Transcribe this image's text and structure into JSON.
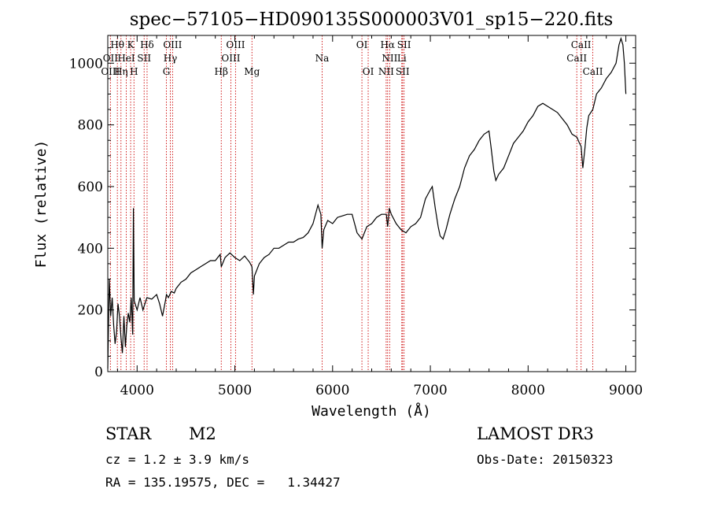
{
  "chart_data": {
    "type": "line",
    "title": "spec−57105−HD090135S000003V01_sp15−220.fits",
    "xlabel": "Wavelength (Å)",
    "ylabel": "Flux (relative)",
    "xlim": [
      3700,
      9100
    ],
    "ylim": [
      0,
      1090
    ],
    "xticks": [
      4000,
      5000,
      6000,
      7000,
      8000,
      9000
    ],
    "yticks": [
      0,
      200,
      400,
      600,
      800,
      1000
    ],
    "grid": false,
    "legend": "none",
    "line_color": "#000000",
    "marker_color": "#cc0000",
    "series": [
      {
        "x": [
          3700,
          3715,
          3730,
          3745,
          3760,
          3775,
          3790,
          3805,
          3820,
          3835,
          3850,
          3865,
          3880,
          3895,
          3910,
          3925,
          3940,
          3955,
          3962,
          3970,
          3985,
          4000,
          4030,
          4060,
          4100,
          4150,
          4200,
          4230,
          4260,
          4290,
          4300,
          4320,
          4350,
          4380,
          4400,
          4450,
          4500,
          4550,
          4600,
          4650,
          4700,
          4750,
          4800,
          4850,
          4861,
          4900,
          4950,
          5000,
          5050,
          5100,
          5150,
          5175,
          5190,
          5200,
          5250,
          5300,
          5350,
          5400,
          5450,
          5500,
          5550,
          5600,
          5650,
          5700,
          5750,
          5800,
          5850,
          5880,
          5893,
          5910,
          5950,
          6000,
          6050,
          6100,
          6150,
          6200,
          6250,
          6300,
          6350,
          6400,
          6450,
          6500,
          6550,
          6563,
          6580,
          6600,
          6650,
          6700,
          6750,
          6800,
          6850,
          6900,
          6950,
          7000,
          7020,
          7050,
          7080,
          7100,
          7130,
          7160,
          7200,
          7250,
          7300,
          7350,
          7400,
          7450,
          7500,
          7550,
          7600,
          7620,
          7650,
          7670,
          7700,
          7750,
          7800,
          7850,
          7900,
          7950,
          8000,
          8050,
          8100,
          8150,
          8200,
          8250,
          8300,
          8350,
          8400,
          8450,
          8500,
          8520,
          8542,
          8560,
          8580,
          8600,
          8620,
          8662,
          8700,
          8750,
          8800,
          8850,
          8900,
          8930,
          8950,
          8970,
          8985,
          9000
        ],
        "y": [
          10,
          300,
          180,
          240,
          150,
          90,
          130,
          220,
          180,
          110,
          60,
          180,
          80,
          150,
          190,
          160,
          240,
          120,
          530,
          230,
          215,
          200,
          240,
          200,
          240,
          235,
          250,
          220,
          180,
          230,
          250,
          240,
          260,
          255,
          270,
          290,
          300,
          320,
          330,
          340,
          350,
          360,
          360,
          380,
          340,
          370,
          385,
          370,
          360,
          375,
          355,
          340,
          250,
          310,
          350,
          370,
          380,
          400,
          400,
          410,
          420,
          420,
          430,
          435,
          450,
          480,
          540,
          510,
          400,
          460,
          490,
          480,
          500,
          505,
          510,
          510,
          450,
          430,
          470,
          480,
          500,
          510,
          510,
          470,
          530,
          510,
          480,
          460,
          450,
          470,
          480,
          500,
          560,
          590,
          600,
          530,
          470,
          440,
          430,
          460,
          510,
          560,
          600,
          660,
          700,
          720,
          750,
          770,
          780,
          730,
          650,
          620,
          640,
          660,
          700,
          740,
          760,
          780,
          810,
          830,
          860,
          870,
          860,
          850,
          840,
          820,
          800,
          770,
          760,
          745,
          730,
          660,
          720,
          790,
          830,
          850,
          900,
          920,
          950,
          970,
          1000,
          1060,
          1080,
          1060,
          1000,
          900
        ]
      }
    ],
    "spectral_lines": [
      {
        "label": "Hθ",
        "x": 3798,
        "row": 0
      },
      {
        "label": "K",
        "x": 3934,
        "row": 0
      },
      {
        "label": "Hδ",
        "x": 4102,
        "row": 0
      },
      {
        "label": "OIII",
        "x": 4363,
        "row": 0
      },
      {
        "label": "OIII",
        "x": 5007,
        "row": 0
      },
      {
        "label": "OI",
        "x": 6300,
        "row": 0
      },
      {
        "label": "Hα",
        "x": 6563,
        "row": 0
      },
      {
        "label": "SII",
        "x": 6731,
        "row": 0
      },
      {
        "label": "CaII",
        "x": 8542,
        "row": 0
      },
      {
        "label": "OII",
        "x": 3727,
        "row": 1
      },
      {
        "label": "HeI",
        "x": 3889,
        "row": 1
      },
      {
        "label": "SII",
        "x": 4072,
        "row": 1
      },
      {
        "label": "Hγ",
        "x": 4340,
        "row": 1
      },
      {
        "label": "OIII",
        "x": 4959,
        "row": 1
      },
      {
        "label": "Na",
        "x": 5893,
        "row": 1
      },
      {
        "label": "NII",
        "x": 6584,
        "row": 1
      },
      {
        "label": "Li",
        "x": 6708,
        "row": 1
      },
      {
        "label": "CaII",
        "x": 8498,
        "row": 1
      },
      {
        "label": "OIII",
        "x": 3727,
        "row": 2
      },
      {
        "label": "Hη",
        "x": 3835,
        "row": 2
      },
      {
        "label": "H",
        "x": 3968,
        "row": 2
      },
      {
        "label": "G",
        "x": 4300,
        "row": 2
      },
      {
        "label": "Hβ",
        "x": 4861,
        "row": 2
      },
      {
        "label": "Mg",
        "x": 5175,
        "row": 2
      },
      {
        "label": "OI",
        "x": 6364,
        "row": 2
      },
      {
        "label": "NII",
        "x": 6548,
        "row": 2
      },
      {
        "label": "SII",
        "x": 6716,
        "row": 2
      },
      {
        "label": "CaII",
        "x": 8662,
        "row": 2
      }
    ],
    "marker_lines_x": [
      3727,
      3798,
      3835,
      3889,
      3934,
      3968,
      4072,
      4102,
      4300,
      4340,
      4363,
      4861,
      4959,
      5007,
      5175,
      5893,
      6300,
      6364,
      6548,
      6563,
      6584,
      6708,
      6716,
      6731,
      8498,
      8542,
      8662
    ]
  },
  "info": {
    "object_class": "STAR",
    "subclass": "M2",
    "survey": "LAMOST DR3",
    "cz_line": "cz = 1.2 ± 3.9 km/s",
    "obs_date_line": "Obs-Date: 20150323",
    "coord_line": "RA = 135.19575, DEC =   1.34427"
  }
}
